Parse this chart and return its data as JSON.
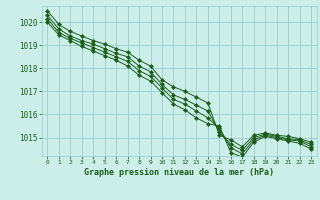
{
  "title": "Graphe pression niveau de la mer (hPa)",
  "background_color": "#cceee8",
  "grid_color": "#99cccc",
  "line_color": "#1a5c1a",
  "marker_color": "#1a5c1a",
  "xlim": [
    -0.5,
    23.5
  ],
  "ylim": [
    1014.2,
    1020.7
  ],
  "yticks": [
    1015,
    1016,
    1017,
    1018,
    1019,
    1020
  ],
  "xticks": [
    0,
    1,
    2,
    3,
    4,
    5,
    6,
    7,
    8,
    9,
    10,
    11,
    12,
    13,
    14,
    15,
    16,
    17,
    18,
    19,
    20,
    21,
    22,
    23
  ],
  "series": [
    [
      1020.5,
      1019.9,
      1019.6,
      1019.4,
      1019.2,
      1019.05,
      1018.85,
      1018.7,
      1018.35,
      1018.1,
      1017.5,
      1017.2,
      1017.0,
      1016.75,
      1016.5,
      1015.1,
      1014.9,
      1014.6,
      1015.1,
      1015.2,
      1015.1,
      1015.05,
      1014.95,
      1014.8
    ],
    [
      1020.3,
      1019.7,
      1019.4,
      1019.2,
      1019.05,
      1018.85,
      1018.65,
      1018.5,
      1018.1,
      1017.85,
      1017.3,
      1016.85,
      1016.65,
      1016.4,
      1016.15,
      1015.25,
      1014.7,
      1014.45,
      1015.0,
      1015.15,
      1015.05,
      1014.95,
      1014.9,
      1014.7
    ],
    [
      1020.15,
      1019.55,
      1019.3,
      1019.1,
      1018.9,
      1018.7,
      1018.5,
      1018.3,
      1017.9,
      1017.65,
      1017.15,
      1016.65,
      1016.45,
      1016.15,
      1015.85,
      1015.4,
      1014.55,
      1014.3,
      1014.9,
      1015.1,
      1015.0,
      1014.9,
      1014.85,
      1014.6
    ],
    [
      1020.0,
      1019.45,
      1019.2,
      1018.95,
      1018.75,
      1018.55,
      1018.35,
      1018.1,
      1017.7,
      1017.45,
      1016.95,
      1016.45,
      1016.2,
      1015.85,
      1015.6,
      1015.5,
      1014.35,
      1014.15,
      1014.8,
      1015.05,
      1014.95,
      1014.85,
      1014.75,
      1014.5
    ]
  ]
}
